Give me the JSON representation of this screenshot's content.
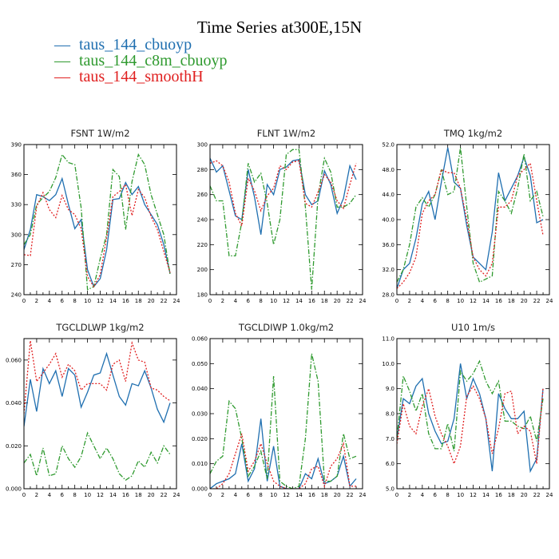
{
  "title": "Time Series at300E,15N",
  "legend": [
    {
      "label": "taus_144_cbuoyp",
      "color": "#1f6fb0",
      "symbol": "—"
    },
    {
      "label": "taus_144_c8m_cbuoyp",
      "color": "#2f9a2f",
      "symbol": "—"
    },
    {
      "label": "taus_144_smoothH",
      "color": "#e02020",
      "symbol": "—"
    }
  ],
  "chart_data": [
    {
      "type": "line",
      "title": "FSNT   1W/m2",
      "xlim": [
        0,
        24
      ],
      "ylim": [
        240,
        390
      ],
      "xticks": [
        "0",
        "2",
        "4",
        "6",
        "8",
        "10",
        "12",
        "14",
        "16",
        "18",
        "20",
        "22",
        "24"
      ],
      "yticks": [
        "240",
        "270",
        "300",
        "330",
        "360",
        "390"
      ],
      "x": [
        0,
        1,
        2,
        3,
        4,
        5,
        6,
        7,
        8,
        9,
        10,
        11,
        12,
        13,
        14,
        15,
        16,
        17,
        18,
        19,
        20,
        21,
        22,
        23
      ],
      "series": [
        {
          "name": "taus_144_cbuoyp",
          "color": "#1f6fb0",
          "dash": "",
          "values": [
            285,
            305,
            340,
            338,
            334,
            340,
            356,
            330,
            306,
            315,
            265,
            248,
            256,
            285,
            335,
            336,
            352,
            340,
            348,
            330,
            320,
            310,
            290,
            261
          ]
        },
        {
          "name": "taus_144_c8m_cbuoyp",
          "color": "#2f9a2f",
          "dash": "6,2,1.5,2",
          "values": [
            290,
            300,
            330,
            337,
            343,
            357,
            380,
            372,
            370,
            327,
            245,
            248,
            276,
            300,
            365,
            358,
            305,
            353,
            380,
            370,
            340,
            320,
            300,
            260
          ]
        },
        {
          "name": "taus_144_smoothH",
          "color": "#e02020",
          "dash": "2,2",
          "values": [
            280,
            279,
            328,
            342,
            325,
            317,
            339,
            325,
            320,
            306,
            258,
            248,
            260,
            297,
            338,
            343,
            350,
            319,
            345,
            337,
            318,
            305,
            283,
            262
          ]
        }
      ]
    },
    {
      "type": "line",
      "title": "FLNT   1W/m2",
      "xlim": [
        0,
        24
      ],
      "ylim": [
        180,
        300
      ],
      "xticks": [
        "0",
        "2",
        "4",
        "6",
        "8",
        "10",
        "12",
        "14",
        "16",
        "18",
        "20",
        "22",
        "24"
      ],
      "yticks": [
        "180",
        "200",
        "220",
        "240",
        "260",
        "280",
        "300"
      ],
      "x": [
        0,
        1,
        2,
        3,
        4,
        5,
        6,
        7,
        8,
        9,
        10,
        11,
        12,
        13,
        14,
        15,
        16,
        17,
        18,
        19,
        20,
        21,
        22,
        23
      ],
      "series": [
        {
          "name": "taus_144_cbuoyp",
          "color": "#1f6fb0",
          "dash": "",
          "values": [
            289,
            278,
            283,
            263,
            243,
            240,
            280,
            258,
            228,
            268,
            260,
            280,
            282,
            287,
            288,
            260,
            252,
            255,
            279,
            268,
            245,
            257,
            283,
            272
          ]
        },
        {
          "name": "taus_144_c8m_cbuoyp",
          "color": "#2f9a2f",
          "dash": "6,2,1.5,2",
          "values": [
            267,
            255,
            255,
            211,
            211,
            238,
            285,
            270,
            277,
            253,
            220,
            240,
            292,
            296,
            296,
            250,
            184,
            259,
            289,
            278,
            250,
            250,
            253,
            260
          ]
        },
        {
          "name": "taus_144_smoothH",
          "color": "#e02020",
          "dash": "2,2",
          "values": [
            285,
            287,
            283,
            270,
            245,
            235,
            273,
            263,
            247,
            259,
            265,
            283,
            280,
            286,
            287,
            253,
            250,
            262,
            276,
            270,
            255,
            249,
            268,
            285
          ]
        }
      ]
    },
    {
      "type": "line",
      "title": "TMQ   1kg/m2",
      "xlim": [
        0,
        24
      ],
      "ylim": [
        28,
        52
      ],
      "xticks": [
        "0",
        "2",
        "4",
        "6",
        "8",
        "10",
        "12",
        "14",
        "16",
        "18",
        "20",
        "22",
        "24"
      ],
      "yticks": [
        "28.0",
        "32.0",
        "36.0",
        "40.0",
        "44.0",
        "48.0",
        "52.0"
      ],
      "x": [
        0,
        1,
        2,
        3,
        4,
        5,
        6,
        7,
        8,
        9,
        10,
        11,
        12,
        13,
        14,
        15,
        16,
        17,
        18,
        19,
        20,
        21,
        22,
        23
      ],
      "series": [
        {
          "name": "taus_144_cbuoyp",
          "color": "#1f6fb0",
          "dash": "",
          "values": [
            29.0,
            32.0,
            33.0,
            37.0,
            42.5,
            44.5,
            40.0,
            46.0,
            51.5,
            46.0,
            45.0,
            39.0,
            34.0,
            33.0,
            32.0,
            38.0,
            47.5,
            43.0,
            45.0,
            47.0,
            50.0,
            47.0,
            39.5,
            40.0
          ]
        },
        {
          "name": "taus_144_c8m_cbuoyp",
          "color": "#2f9a2f",
          "dash": "6,2,1.5,2",
          "values": [
            30.0,
            32.0,
            36.0,
            42.0,
            43.5,
            42.0,
            44.0,
            48.0,
            44.0,
            44.5,
            51.5,
            42.0,
            33.0,
            30.0,
            30.5,
            31.0,
            44.5,
            43.0,
            41.0,
            45.0,
            50.5,
            43.0,
            44.5,
            40.5
          ]
        },
        {
          "name": "taus_144_smoothH",
          "color": "#e02020",
          "dash": "2,2",
          "values": [
            29.0,
            30.0,
            31.5,
            34.0,
            41.0,
            43.0,
            44.0,
            48.0,
            47.5,
            47.5,
            45.0,
            40.0,
            34.0,
            32.0,
            31.0,
            33.0,
            42.0,
            42.0,
            43.0,
            47.0,
            48.0,
            49.0,
            43.0,
            37.5
          ]
        }
      ]
    },
    {
      "type": "line",
      "title": "TGCLDLWP   1kg/m2",
      "xlim": [
        0,
        24
      ],
      "ylim": [
        0,
        0.07
      ],
      "xticks": [
        "0",
        "2",
        "4",
        "6",
        "8",
        "10",
        "12",
        "14",
        "16",
        "18",
        "20",
        "22",
        "24"
      ],
      "yticks": [
        "0.000",
        "0.020",
        "0.040",
        "0.060"
      ],
      "x": [
        0,
        1,
        2,
        3,
        4,
        5,
        6,
        7,
        8,
        9,
        10,
        11,
        12,
        13,
        14,
        15,
        16,
        17,
        18,
        19,
        20,
        21,
        22,
        23
      ],
      "series": [
        {
          "name": "taus_144_cbuoyp",
          "color": "#1f6fb0",
          "dash": "",
          "values": [
            0.029,
            0.051,
            0.036,
            0.056,
            0.049,
            0.055,
            0.043,
            0.056,
            0.053,
            0.038,
            0.045,
            0.053,
            0.054,
            0.063,
            0.053,
            0.043,
            0.039,
            0.049,
            0.048,
            0.055,
            0.047,
            0.037,
            0.031,
            0.04
          ]
        },
        {
          "name": "taus_144_c8m_cbuoyp",
          "color": "#2f9a2f",
          "dash": "6,2,1.5,2",
          "values": [
            0.012,
            0.016,
            0.006,
            0.019,
            0.006,
            0.007,
            0.02,
            0.014,
            0.01,
            0.015,
            0.026,
            0.02,
            0.014,
            0.019,
            0.014,
            0.007,
            0.004,
            0.006,
            0.013,
            0.01,
            0.017,
            0.012,
            0.02,
            0.016
          ]
        },
        {
          "name": "taus_144_smoothH",
          "color": "#e02020",
          "dash": "2,2",
          "values": [
            0.035,
            0.069,
            0.05,
            0.054,
            0.058,
            0.063,
            0.052,
            0.058,
            0.055,
            0.046,
            0.049,
            0.049,
            0.049,
            0.046,
            0.058,
            0.06,
            0.05,
            0.068,
            0.06,
            0.059,
            0.047,
            0.046,
            0.043,
            0.041
          ]
        }
      ]
    },
    {
      "type": "line",
      "title": "TGCLDIWP   1.0kg/m2",
      "xlim": [
        0,
        24
      ],
      "ylim": [
        0,
        0.06
      ],
      "xticks": [
        "0",
        "2",
        "4",
        "6",
        "8",
        "10",
        "12",
        "14",
        "16",
        "18",
        "20",
        "22",
        "24"
      ],
      "yticks": [
        "0.000",
        "0.010",
        "0.020",
        "0.030",
        "0.040",
        "0.050",
        "0.060"
      ],
      "x": [
        0,
        1,
        2,
        3,
        4,
        5,
        6,
        7,
        8,
        9,
        10,
        11,
        12,
        13,
        14,
        15,
        16,
        17,
        18,
        19,
        20,
        21,
        22,
        23
      ],
      "series": [
        {
          "name": "taus_144_cbuoyp",
          "color": "#1f6fb0",
          "dash": "",
          "values": [
            0.0,
            0.002,
            0.003,
            0.004,
            0.006,
            0.018,
            0.003,
            0.008,
            0.028,
            0.003,
            0.017,
            0.001,
            0.0,
            0.0,
            0.0,
            0.006,
            0.004,
            0.012,
            0.002,
            0.003,
            0.005,
            0.013,
            0.001,
            0.004
          ]
        },
        {
          "name": "taus_144_c8m_cbuoyp",
          "color": "#2f9a2f",
          "dash": "6,2,1.5,2",
          "values": [
            0.006,
            0.011,
            0.013,
            0.035,
            0.032,
            0.02,
            0.005,
            0.009,
            0.015,
            0.004,
            0.045,
            0.003,
            0.001,
            0.0,
            0.001,
            0.02,
            0.054,
            0.043,
            0.003,
            0.003,
            0.005,
            0.022,
            0.012,
            0.013
          ]
        },
        {
          "name": "taus_144_smoothH",
          "color": "#e02020",
          "dash": "2,2",
          "values": [
            0.0,
            0.0,
            0.002,
            0.006,
            0.014,
            0.022,
            0.007,
            0.011,
            0.018,
            0.01,
            0.003,
            0.001,
            0.0,
            0.0,
            0.0,
            0.002,
            0.008,
            0.009,
            0.001,
            0.009,
            0.012,
            0.018,
            0.001,
            0.001
          ]
        }
      ]
    },
    {
      "type": "line",
      "title": "U10   1m/s",
      "xlim": [
        0,
        24
      ],
      "ylim": [
        5,
        11
      ],
      "xticks": [
        "0",
        "2",
        "4",
        "6",
        "8",
        "10",
        "12",
        "14",
        "16",
        "18",
        "20",
        "22",
        "24"
      ],
      "yticks": [
        "5.0",
        "6.0",
        "7.0",
        "8.0",
        "9.0",
        "10.0",
        "11.0"
      ],
      "x": [
        0,
        1,
        2,
        3,
        4,
        5,
        6,
        7,
        8,
        9,
        10,
        11,
        12,
        13,
        14,
        15,
        16,
        17,
        18,
        19,
        20,
        21,
        22,
        23
      ],
      "series": [
        {
          "name": "taus_144_cbuoyp",
          "color": "#1f6fb0",
          "dash": "",
          "values": [
            7.0,
            8.6,
            8.4,
            9.1,
            9.4,
            8.0,
            7.3,
            6.8,
            6.9,
            7.8,
            10.0,
            8.6,
            9.4,
            8.8,
            7.8,
            5.7,
            8.8,
            8.2,
            7.8,
            7.8,
            8.1,
            5.7,
            6.2,
            9.0
          ]
        },
        {
          "name": "taus_144_c8m_cbuoyp",
          "color": "#2f9a2f",
          "dash": "6,2,1.5,2",
          "values": [
            7.0,
            9.5,
            8.9,
            8.1,
            8.8,
            7.2,
            6.6,
            6.6,
            7.6,
            6.5,
            9.7,
            9.3,
            9.6,
            10.1,
            9.3,
            8.8,
            9.3,
            7.7,
            7.7,
            7.5,
            7.4,
            7.9,
            6.9,
            8.6
          ]
        },
        {
          "name": "taus_144_smoothH",
          "color": "#e02020",
          "dash": "2,2",
          "values": [
            6.8,
            8.4,
            7.5,
            7.2,
            8.3,
            9.0,
            7.9,
            7.2,
            6.7,
            6.0,
            6.7,
            8.7,
            9.1,
            8.6,
            7.8,
            6.4,
            7.4,
            8.8,
            8.9,
            7.2,
            7.5,
            7.3,
            6.0,
            9.0
          ]
        }
      ]
    }
  ]
}
